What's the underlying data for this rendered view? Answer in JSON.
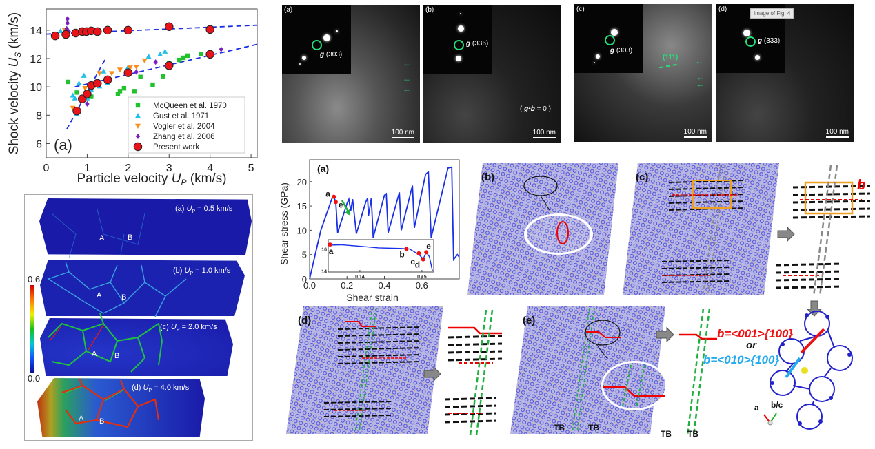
{
  "chart_data": [
    {
      "type": "scatter",
      "panel_label": "(a)",
      "xlabel": "Particle velocity U_P (km/s)",
      "xlabel_parts": [
        "Particle velocity ",
        "U",
        "P",
        " (km/s)"
      ],
      "ylabel_parts": [
        "Shock velocity ",
        "U",
        "S",
        " (km/s)"
      ],
      "xlim": [
        0,
        5.15
      ],
      "ylim": [
        5,
        15.5
      ],
      "xticks": [
        0,
        1,
        2,
        3,
        4,
        5
      ],
      "yticks": [
        6,
        8,
        10,
        12,
        14
      ],
      "legend_position": "bottom-right",
      "series": [
        {
          "name": "McQueen et al. 1970",
          "marker": "square",
          "color": "#22c22e",
          "points": [
            [
              0.53,
              10.35
            ],
            [
              0.75,
              9.6
            ],
            [
              1.1,
              9.3
            ],
            [
              1.75,
              9.5
            ],
            [
              1.8,
              9.7
            ],
            [
              1.9,
              9.9
            ],
            [
              2.15,
              9.7
            ],
            [
              2.3,
              10.7
            ],
            [
              2.6,
              10.15
            ],
            [
              2.85,
              10.75
            ],
            [
              3.0,
              11.7
            ],
            [
              3.0,
              11.4
            ],
            [
              3.25,
              11.9
            ],
            [
              3.35,
              12.05
            ],
            [
              3.45,
              12.2
            ],
            [
              3.78,
              12.3
            ]
          ]
        },
        {
          "name": "Gust et al. 1971",
          "marker": "triangle-up",
          "color": "#22c0e8",
          "points": [
            [
              0.35,
              13.95
            ],
            [
              0.65,
              9.4
            ],
            [
              0.7,
              9.2
            ],
            [
              0.75,
              8.1
            ],
            [
              0.8,
              10.25
            ],
            [
              0.92,
              10.8
            ],
            [
              1.0,
              9.2
            ],
            [
              1.1,
              9.8
            ],
            [
              1.3,
              10.05
            ],
            [
              1.4,
              11.1
            ],
            [
              1.5,
              10.3
            ],
            [
              2.0,
              11.4
            ],
            [
              2.5,
              12.15
            ],
            [
              2.78,
              12.3
            ],
            [
              2.9,
              12.5
            ]
          ]
        },
        {
          "name": "Vogler et al. 2004",
          "marker": "triangle-down",
          "color": "#ff8c1a",
          "points": [
            [
              0.45,
              14.0
            ],
            [
              0.65,
              8.5
            ],
            [
              0.9,
              9.0
            ],
            [
              0.95,
              9.9
            ],
            [
              1.2,
              10.1
            ],
            [
              1.3,
              10.95
            ],
            [
              1.6,
              10.95
            ],
            [
              1.8,
              11.2
            ],
            [
              2.05,
              11.35
            ],
            [
              2.2,
              11.4
            ],
            [
              2.4,
              11.85
            ]
          ]
        },
        {
          "name": "Zhang et al. 2006",
          "marker": "diamond",
          "color": "#7a1fbf",
          "points": [
            [
              0.52,
              14.8
            ],
            [
              0.52,
              14.5
            ],
            [
              0.5,
              14.1
            ],
            [
              0.55,
              13.9
            ],
            [
              1.0,
              8.8
            ],
            [
              1.0,
              9.6
            ],
            [
              2.2,
              11.05
            ],
            [
              2.67,
              11.75
            ],
            [
              4.27,
              12.65
            ]
          ]
        },
        {
          "name": "Present work",
          "marker": "circle",
          "color": "#e8141a",
          "points": [
            [
              0.22,
              13.6
            ],
            [
              0.48,
              13.7
            ],
            [
              0.72,
              13.8
            ],
            [
              0.88,
              13.9
            ],
            [
              0.98,
              13.9
            ],
            [
              1.1,
              13.95
            ],
            [
              1.25,
              13.9
            ],
            [
              1.5,
              14.0
            ],
            [
              2.0,
              14.0
            ],
            [
              3.0,
              14.25
            ],
            [
              4.0,
              14.05
            ],
            [
              0.75,
              8.3
            ],
            [
              0.88,
              9.15
            ],
            [
              1.0,
              9.5
            ],
            [
              1.1,
              10.1
            ],
            [
              1.25,
              10.25
            ],
            [
              1.5,
              10.5
            ],
            [
              2.0,
              11.0
            ],
            [
              3.0,
              11.5
            ],
            [
              4.0,
              12.3
            ]
          ]
        }
      ],
      "fit_lines": [
        [
          [
            0,
            13.72
          ],
          [
            5.15,
            14.35
          ]
        ],
        [
          [
            0.7,
            10.0
          ],
          [
            5.15,
            13.0
          ]
        ],
        [
          [
            0.5,
            7.0
          ],
          [
            1.45,
            12.0
          ]
        ]
      ],
      "fit_color": "#1a2fe0"
    },
    {
      "type": "line",
      "panel_label": "(a)",
      "xlabel": "Shear strain",
      "ylabel": "Shear stress (GPa)",
      "xlim": [
        0,
        0.8
      ],
      "ylim": [
        0,
        24.5
      ],
      "xticks": [
        "0.0",
        "0.2",
        "0.4",
        "0.6"
      ],
      "yticks": [
        "0",
        "5",
        "10",
        "15",
        "20"
      ],
      "color": "#1a2fe8",
      "curve": [
        [
          0,
          0
        ],
        [
          0.06,
          10
        ],
        [
          0.12,
          16.6
        ],
        [
          0.13,
          16.9
        ],
        [
          0.14,
          15.8
        ],
        [
          0.15,
          9.5
        ],
        [
          0.2,
          15.5
        ],
        [
          0.21,
          16.4
        ],
        [
          0.22,
          14
        ],
        [
          0.23,
          16.4
        ],
        [
          0.25,
          9.3
        ],
        [
          0.3,
          15.8
        ],
        [
          0.31,
          16.6
        ],
        [
          0.315,
          13
        ],
        [
          0.33,
          16.6
        ],
        [
          0.34,
          8.5
        ],
        [
          0.4,
          17.2
        ],
        [
          0.41,
          17.5
        ],
        [
          0.42,
          9.5
        ],
        [
          0.48,
          17.8
        ],
        [
          0.49,
          10
        ],
        [
          0.55,
          19.2
        ],
        [
          0.56,
          10.5
        ],
        [
          0.62,
          21.5
        ],
        [
          0.635,
          22
        ],
        [
          0.65,
          8.5
        ],
        [
          0.74,
          22.8
        ],
        [
          0.76,
          23
        ],
        [
          0.77,
          4
        ],
        [
          0.79,
          5
        ],
        [
          0.8,
          4.5
        ]
      ],
      "marked_points": [
        {
          "label": "a",
          "x": 0.13,
          "y": 16.9
        },
        {
          "label": "e",
          "x": 0.14,
          "y": 15.8
        }
      ],
      "inset": {
        "xlim": [
          0.1349,
          0.1519
        ],
        "ylim": [
          13.9,
          16.85
        ],
        "xticks": [
          "0.14",
          "0.15"
        ],
        "yticks": [
          "14",
          "16"
        ],
        "curve": [
          [
            0.1351,
            16.35
          ],
          [
            0.137,
            16.38
          ],
          [
            0.14,
            16.25
          ],
          [
            0.143,
            16.1
          ],
          [
            0.1465,
            16.05
          ],
          [
            0.148,
            16.0
          ],
          [
            0.1495,
            15.5
          ],
          [
            0.1502,
            15.1
          ],
          [
            0.1507,
            15.7
          ],
          [
            0.1512,
            15.3
          ],
          [
            0.1517,
            14.0
          ]
        ],
        "marked_points": [
          {
            "label": "a",
            "x": 0.1352,
            "y": 16.4
          },
          {
            "label": "b",
            "x": 0.1475,
            "y": 16.0
          },
          {
            "label": "c",
            "x": 0.1495,
            "y": 15.6
          },
          {
            "label": "d",
            "x": 0.1502,
            "y": 15.05
          },
          {
            "label": "e",
            "x": 0.1507,
            "y": 15.7
          }
        ]
      }
    }
  ],
  "grains": {
    "colorbar": {
      "max": "0.6",
      "min": "0.0"
    },
    "panels": [
      {
        "label": "(a) ",
        "sym": "U",
        "sub": "P",
        "value": " = 0.5 km/s"
      },
      {
        "label": "(b) ",
        "sym": "U",
        "sub": "P",
        "value": " = 1.0 km/s"
      },
      {
        "label": "(c) ",
        "sym": "U",
        "sub": "P",
        "value": " = 2.0 km/s"
      },
      {
        "label": "(d) ",
        "sym": "U",
        "sub": "P",
        "value": " = 4.0 km/s"
      }
    ],
    "grain_a": "A",
    "grain_b": "B"
  },
  "tem": [
    {
      "label": "(a)",
      "g": "g",
      "hkl": " (303)",
      "scale": "100 nm"
    },
    {
      "label": "(b)",
      "g": "g",
      "hkl": " (336)",
      "scale": "100 nm",
      "note_g": "g",
      "note_dot": "•",
      "note_b": "b",
      "note_rest": " = 0 )",
      "note_open": "( "
    },
    {
      "label": "(c)",
      "g": "g",
      "hkl": " (303)",
      "scale": "100 nm",
      "plane": "(111)"
    },
    {
      "label": "(d)",
      "g": "g",
      "hkl": " (333)",
      "scale": "100 nm"
    }
  ],
  "tooltip": "Image of Fig. 4",
  "atomistic": {
    "labels": [
      "(b)",
      "(c)",
      "(d)",
      "(e)"
    ],
    "burgers_label_c": "b",
    "tb": "TB",
    "burgers_red": "b=<001>{100}",
    "or": "or",
    "burgers_blue": "b=<010>{100}",
    "axis_a": "a",
    "axis_bc": "b/c"
  }
}
